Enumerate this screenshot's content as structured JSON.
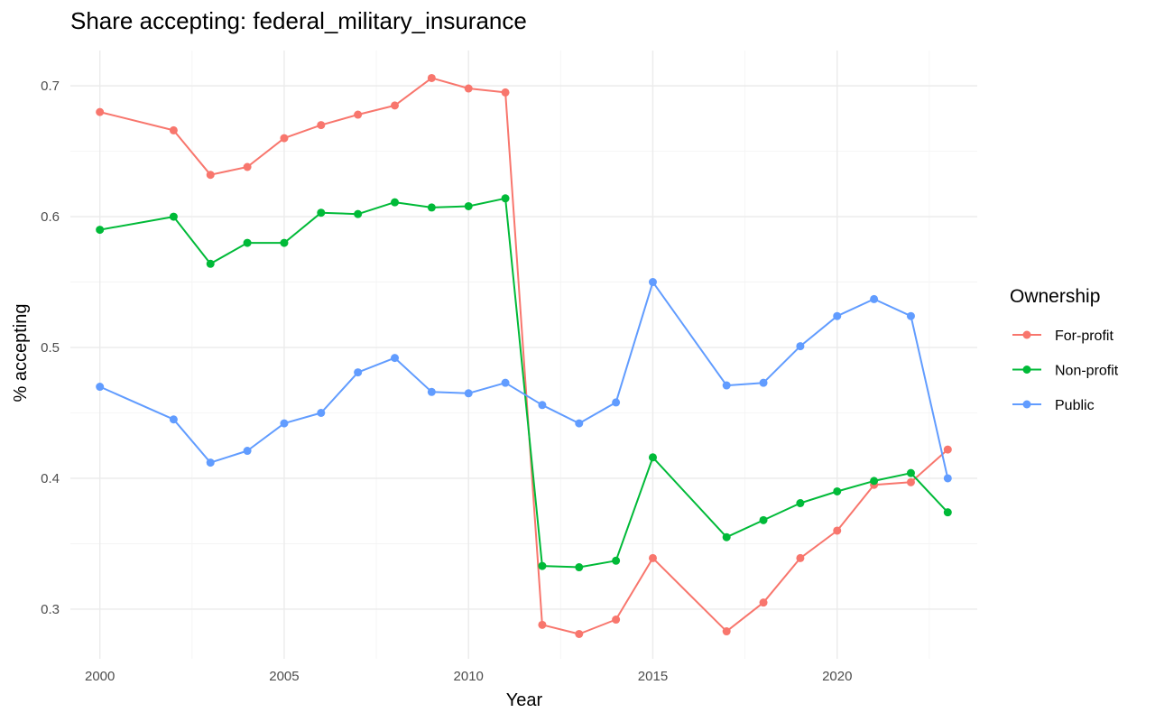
{
  "chart_data": {
    "type": "line",
    "title": "Share accepting: federal_military_insurance",
    "xlabel": "Year",
    "ylabel": "% accepting",
    "xlim": [
      1999.2,
      2023.8
    ],
    "ylim": [
      0.262,
      0.727
    ],
    "x_ticks": [
      2000,
      2005,
      2010,
      2015,
      2020
    ],
    "y_ticks": [
      0.3,
      0.4,
      0.5,
      0.6,
      0.7
    ],
    "y_tick_labels": [
      "0.3",
      "0.4",
      "0.5",
      "0.6",
      "0.7"
    ],
    "grid": true,
    "legend": {
      "title": "Ownership",
      "position": "right"
    },
    "series": [
      {
        "name": "For-profit",
        "color": "#F8766D",
        "points": [
          {
            "x": 2000,
            "y": 0.68
          },
          {
            "x": 2002,
            "y": 0.666
          },
          {
            "x": 2003,
            "y": 0.632
          },
          {
            "x": 2004,
            "y": 0.638
          },
          {
            "x": 2005,
            "y": 0.66
          },
          {
            "x": 2006,
            "y": 0.67
          },
          {
            "x": 2007,
            "y": 0.678
          },
          {
            "x": 2008,
            "y": 0.685
          },
          {
            "x": 2009,
            "y": 0.706
          },
          {
            "x": 2010,
            "y": 0.698
          },
          {
            "x": 2011,
            "y": 0.695
          },
          {
            "x": 2012,
            "y": 0.288
          },
          {
            "x": 2013,
            "y": 0.281
          },
          {
            "x": 2014,
            "y": 0.292
          },
          {
            "x": 2015,
            "y": 0.339
          },
          {
            "x": 2017,
            "y": 0.283
          },
          {
            "x": 2018,
            "y": 0.305
          },
          {
            "x": 2019,
            "y": 0.339
          },
          {
            "x": 2020,
            "y": 0.36
          },
          {
            "x": 2021,
            "y": 0.395
          },
          {
            "x": 2022,
            "y": 0.397
          },
          {
            "x": 2023,
            "y": 0.422
          }
        ]
      },
      {
        "name": "Non-profit",
        "color": "#00BA38",
        "points": [
          {
            "x": 2000,
            "y": 0.59
          },
          {
            "x": 2002,
            "y": 0.6
          },
          {
            "x": 2003,
            "y": 0.564
          },
          {
            "x": 2004,
            "y": 0.58
          },
          {
            "x": 2005,
            "y": 0.58
          },
          {
            "x": 2006,
            "y": 0.603
          },
          {
            "x": 2007,
            "y": 0.602
          },
          {
            "x": 2008,
            "y": 0.611
          },
          {
            "x": 2009,
            "y": 0.607
          },
          {
            "x": 2010,
            "y": 0.608
          },
          {
            "x": 2011,
            "y": 0.614
          },
          {
            "x": 2012,
            "y": 0.333
          },
          {
            "x": 2013,
            "y": 0.332
          },
          {
            "x": 2014,
            "y": 0.337
          },
          {
            "x": 2015,
            "y": 0.416
          },
          {
            "x": 2017,
            "y": 0.355
          },
          {
            "x": 2018,
            "y": 0.368
          },
          {
            "x": 2019,
            "y": 0.381
          },
          {
            "x": 2020,
            "y": 0.39
          },
          {
            "x": 2021,
            "y": 0.398
          },
          {
            "x": 2022,
            "y": 0.404
          },
          {
            "x": 2023,
            "y": 0.374
          }
        ]
      },
      {
        "name": "Public",
        "color": "#619CFF",
        "points": [
          {
            "x": 2000,
            "y": 0.47
          },
          {
            "x": 2002,
            "y": 0.445
          },
          {
            "x": 2003,
            "y": 0.412
          },
          {
            "x": 2004,
            "y": 0.421
          },
          {
            "x": 2005,
            "y": 0.442
          },
          {
            "x": 2006,
            "y": 0.45
          },
          {
            "x": 2007,
            "y": 0.481
          },
          {
            "x": 2008,
            "y": 0.492
          },
          {
            "x": 2009,
            "y": 0.466
          },
          {
            "x": 2010,
            "y": 0.465
          },
          {
            "x": 2011,
            "y": 0.473
          },
          {
            "x": 2012,
            "y": 0.456
          },
          {
            "x": 2013,
            "y": 0.442
          },
          {
            "x": 2014,
            "y": 0.458
          },
          {
            "x": 2015,
            "y": 0.55
          },
          {
            "x": 2017,
            "y": 0.471
          },
          {
            "x": 2018,
            "y": 0.473
          },
          {
            "x": 2019,
            "y": 0.501
          },
          {
            "x": 2020,
            "y": 0.524
          },
          {
            "x": 2021,
            "y": 0.537
          },
          {
            "x": 2022,
            "y": 0.524
          },
          {
            "x": 2023,
            "y": 0.4
          }
        ]
      }
    ]
  }
}
